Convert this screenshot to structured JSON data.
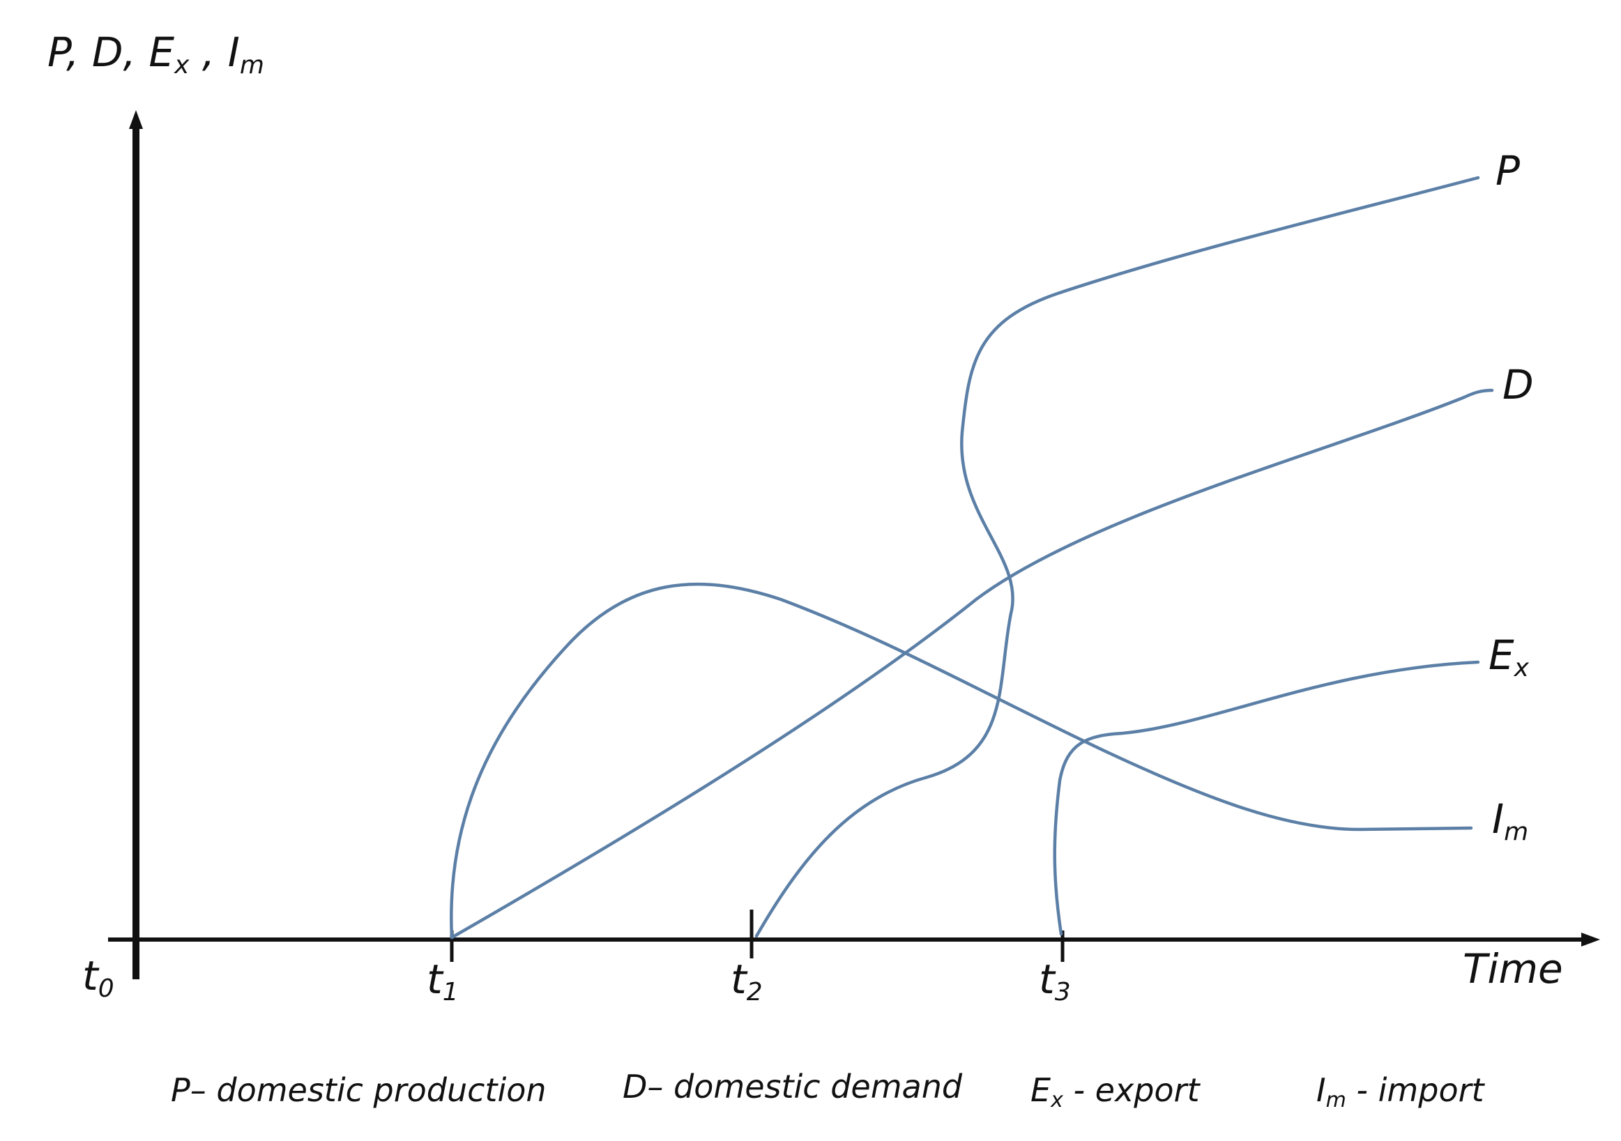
{
  "colors": {
    "curve": "#5b7fa6",
    "axis": "#111111"
  },
  "axes": {
    "y_label": {
      "P": "P",
      "D": "D",
      "Ex_main": "E",
      "Ex_sub": "x",
      "Im_main": "I",
      "Im_sub": "m",
      "sep1": ",",
      "sep2": ",",
      "sep3": ","
    },
    "x_label": "Time",
    "ticks": [
      {
        "main": "t",
        "sub": "0"
      },
      {
        "main": "t",
        "sub": "1"
      },
      {
        "main": "t",
        "sub": "2"
      },
      {
        "main": "t",
        "sub": "3"
      }
    ]
  },
  "curves": {
    "P": {
      "label": "P"
    },
    "D": {
      "label": "D"
    },
    "Ex": {
      "label_main": "E",
      "label_sub": "x"
    },
    "Im": {
      "label_main": "I",
      "label_sub": "m"
    }
  },
  "legend": {
    "P": {
      "symbol": "P",
      "text": "– domestic production"
    },
    "D": {
      "symbol": "D",
      "text": "– domestic demand"
    },
    "Ex": {
      "symbol_main": "E",
      "symbol_sub": "x",
      "text": " - export"
    },
    "Im": {
      "symbol_main": "I",
      "symbol_sub": "m",
      "text": " - import"
    }
  }
}
